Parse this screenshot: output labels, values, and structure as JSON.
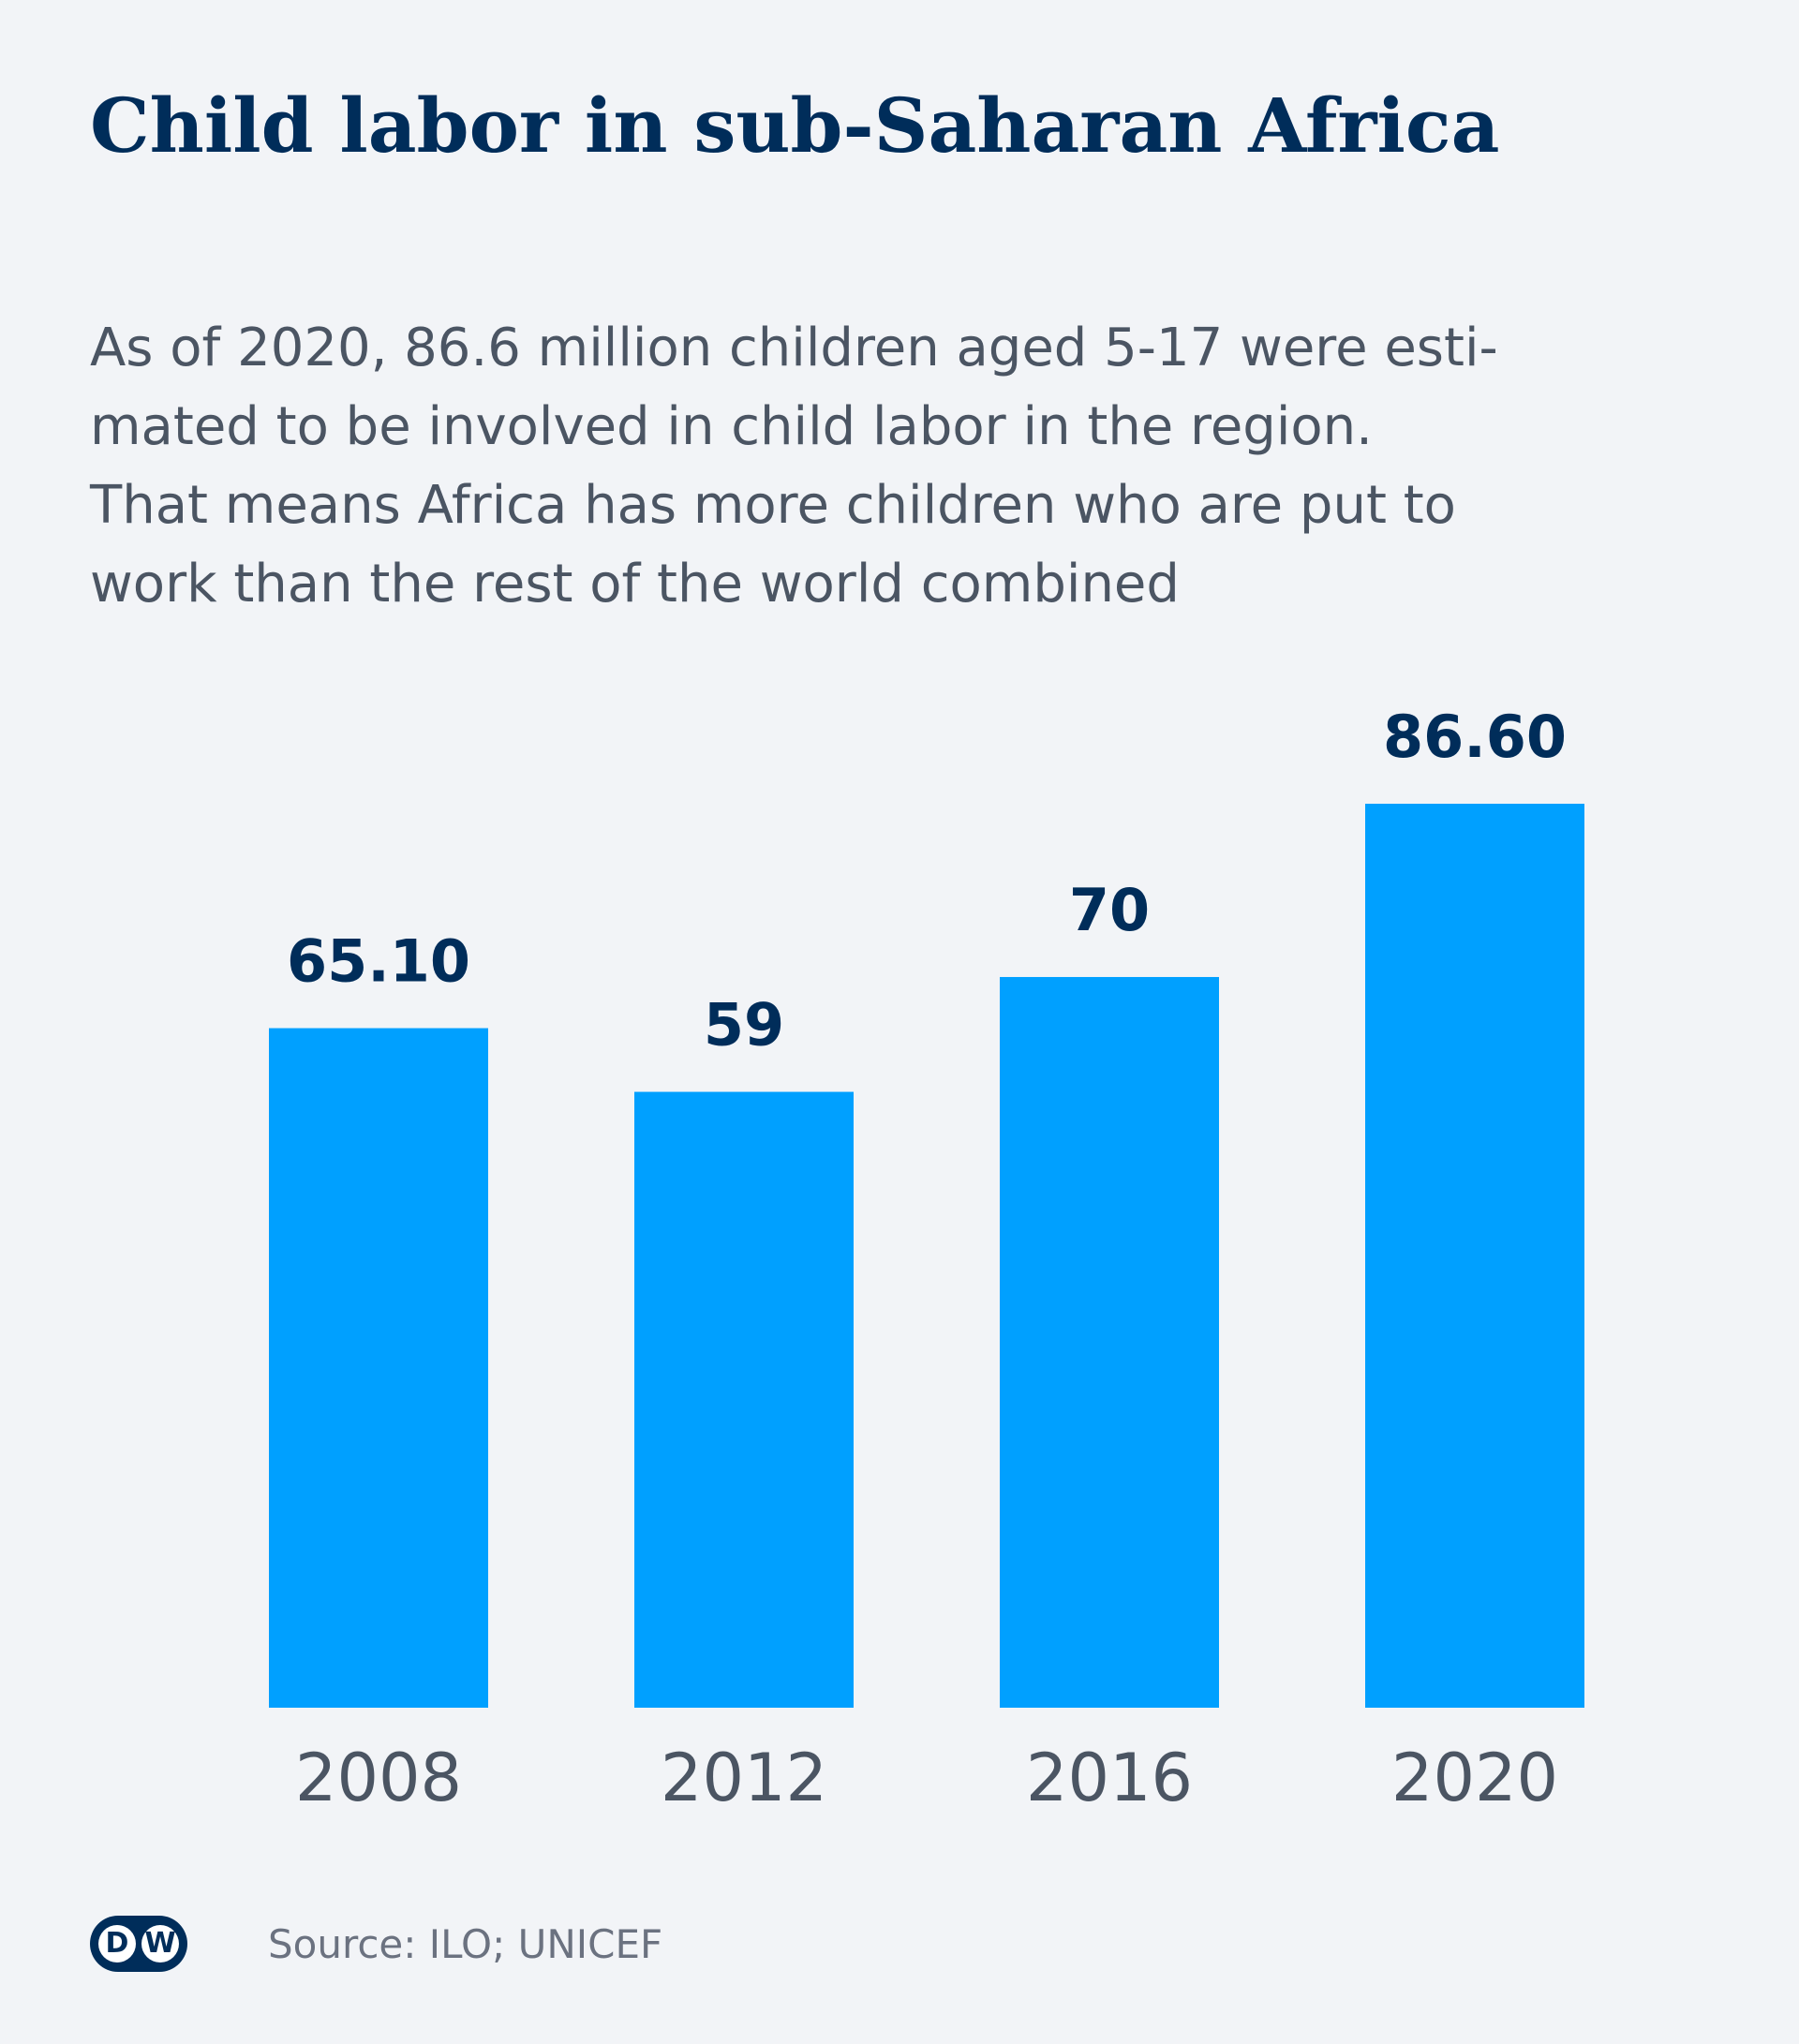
{
  "title": "Child labor in sub-Saharan Africa",
  "subtitle_lines": [
    "As of 2020, 86.6 million children aged 5-17 were esti-",
    "mated to be involved in child labor in the region.",
    "That means Africa has more children who are put to",
    "work than the rest of the world combined"
  ],
  "source": "Source: ILO; UNICEF",
  "logo": {
    "left": "D",
    "right": "W"
  },
  "colors": {
    "bar": "#00a0ff",
    "title": "#002d5a",
    "value_label": "#002d5a",
    "text": "#4b5563",
    "background": "#f2f4f7"
  },
  "chart_data": {
    "type": "bar",
    "title": "Child labor in sub-Saharan Africa",
    "xlabel": "",
    "ylabel": "",
    "categories": [
      "2008",
      "2012",
      "2016",
      "2020"
    ],
    "values": [
      65.1,
      59,
      70,
      86.6
    ],
    "value_labels": [
      "65.10",
      "59",
      "70",
      "86.60"
    ],
    "ylim": [
      0,
      86.6
    ],
    "grid": false,
    "legend": "none"
  }
}
